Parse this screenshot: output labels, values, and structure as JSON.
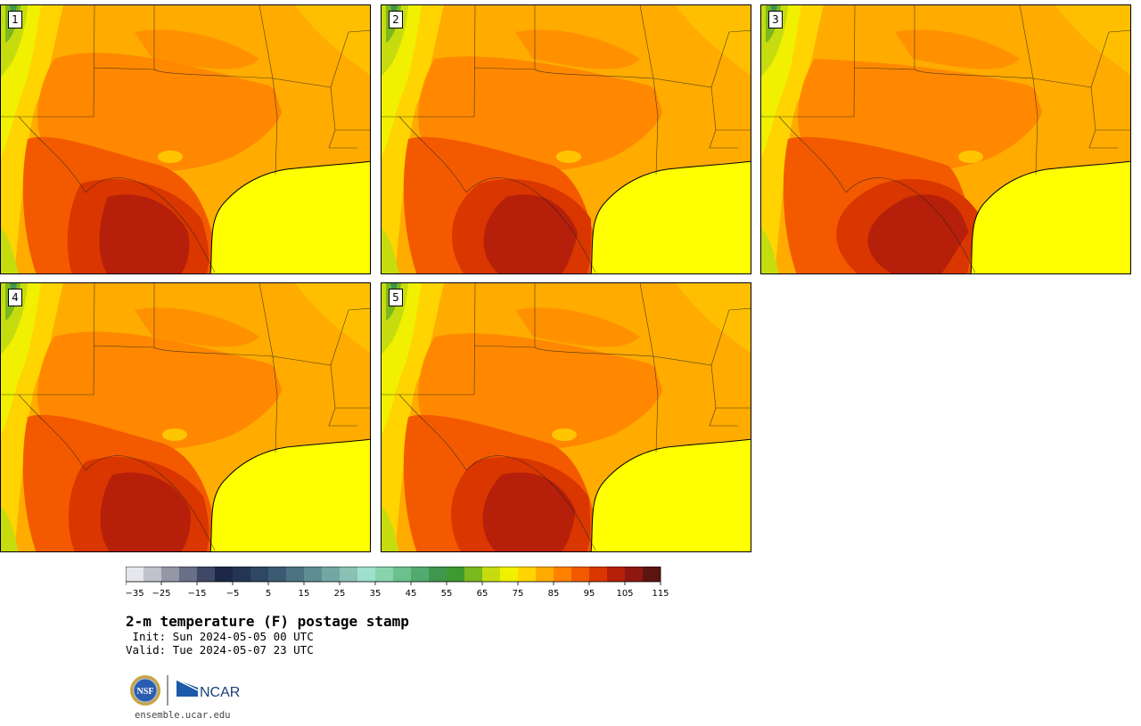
{
  "panels": [
    {
      "label": "1",
      "hot_shift": 0
    },
    {
      "label": "2",
      "hot_shift": 40
    },
    {
      "label": "3",
      "hot_shift": 90
    },
    {
      "label": "4",
      "hot_shift": 10
    },
    {
      "label": "5",
      "hot_shift": 30
    }
  ],
  "colorbar": {
    "colors": [
      "#e6e7ec",
      "#bfc1cb",
      "#9597a7",
      "#6a6f88",
      "#3f4766",
      "#1c2846",
      "#243553",
      "#2f4763",
      "#3c5b73",
      "#4b7382",
      "#5e8d92",
      "#73a7a3",
      "#89c1b5",
      "#9ee0cc",
      "#88d3ae",
      "#6bc08e",
      "#52ab6e",
      "#3f964d",
      "#3d9a31",
      "#7ab81e",
      "#c6dc0f",
      "#f0f000",
      "#ffd400",
      "#ffab00",
      "#ff8100",
      "#f35a00",
      "#d93600",
      "#b61f0a",
      "#8e1810",
      "#5e140f"
    ],
    "tick_labels": [
      "−35",
      "−25",
      "−15",
      "−5",
      "5",
      "15",
      "25",
      "35",
      "45",
      "55",
      "65",
      "75",
      "85",
      "95",
      "105",
      "115"
    ]
  },
  "title": "2-m temperature (F) postage stamp",
  "init": " Init: Sun 2024-05-05 00 UTC",
  "valid": "Valid: Tue 2024-05-07 23 UTC",
  "logos": {
    "nsf": "NSF",
    "ncar": "NCAR"
  },
  "website": "ensemble.ucar.edu"
}
